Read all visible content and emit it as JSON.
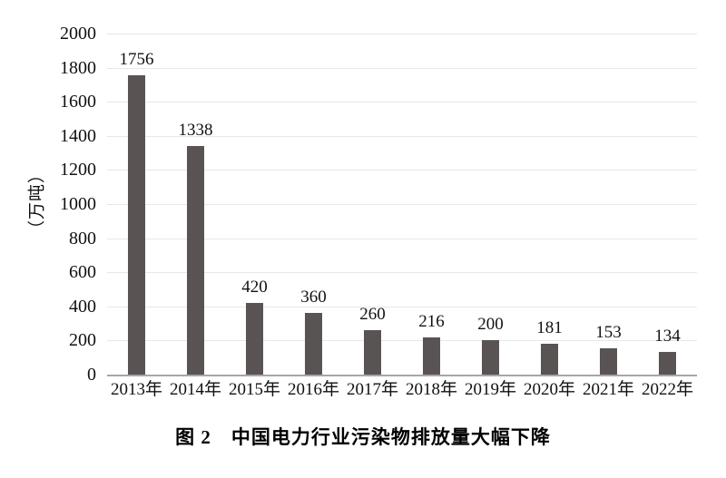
{
  "caption": "图 2　中国电力行业污染物排放量大幅下降",
  "chart_data": {
    "type": "bar",
    "title": "图 2　中国电力行业污染物排放量大幅下降",
    "xlabel": "",
    "ylabel": "（万吨）",
    "categories": [
      "2013年",
      "2014年",
      "2015年",
      "2016年",
      "2017年",
      "2018年",
      "2019年",
      "2020年",
      "2021年",
      "2022年"
    ],
    "values": [
      1756,
      1338,
      420,
      360,
      260,
      216,
      200,
      181,
      153,
      134
    ],
    "ylim": [
      0,
      2000
    ],
    "yticks": [
      0,
      200,
      400,
      600,
      800,
      1000,
      1200,
      1400,
      1600,
      1800,
      2000
    ],
    "grid": "horizontal",
    "legend": "none",
    "bar_color": "#595353",
    "gridline_color": "#e7e7e7",
    "axis_line_color": "#a6a6a6",
    "text_color": "#111111"
  }
}
